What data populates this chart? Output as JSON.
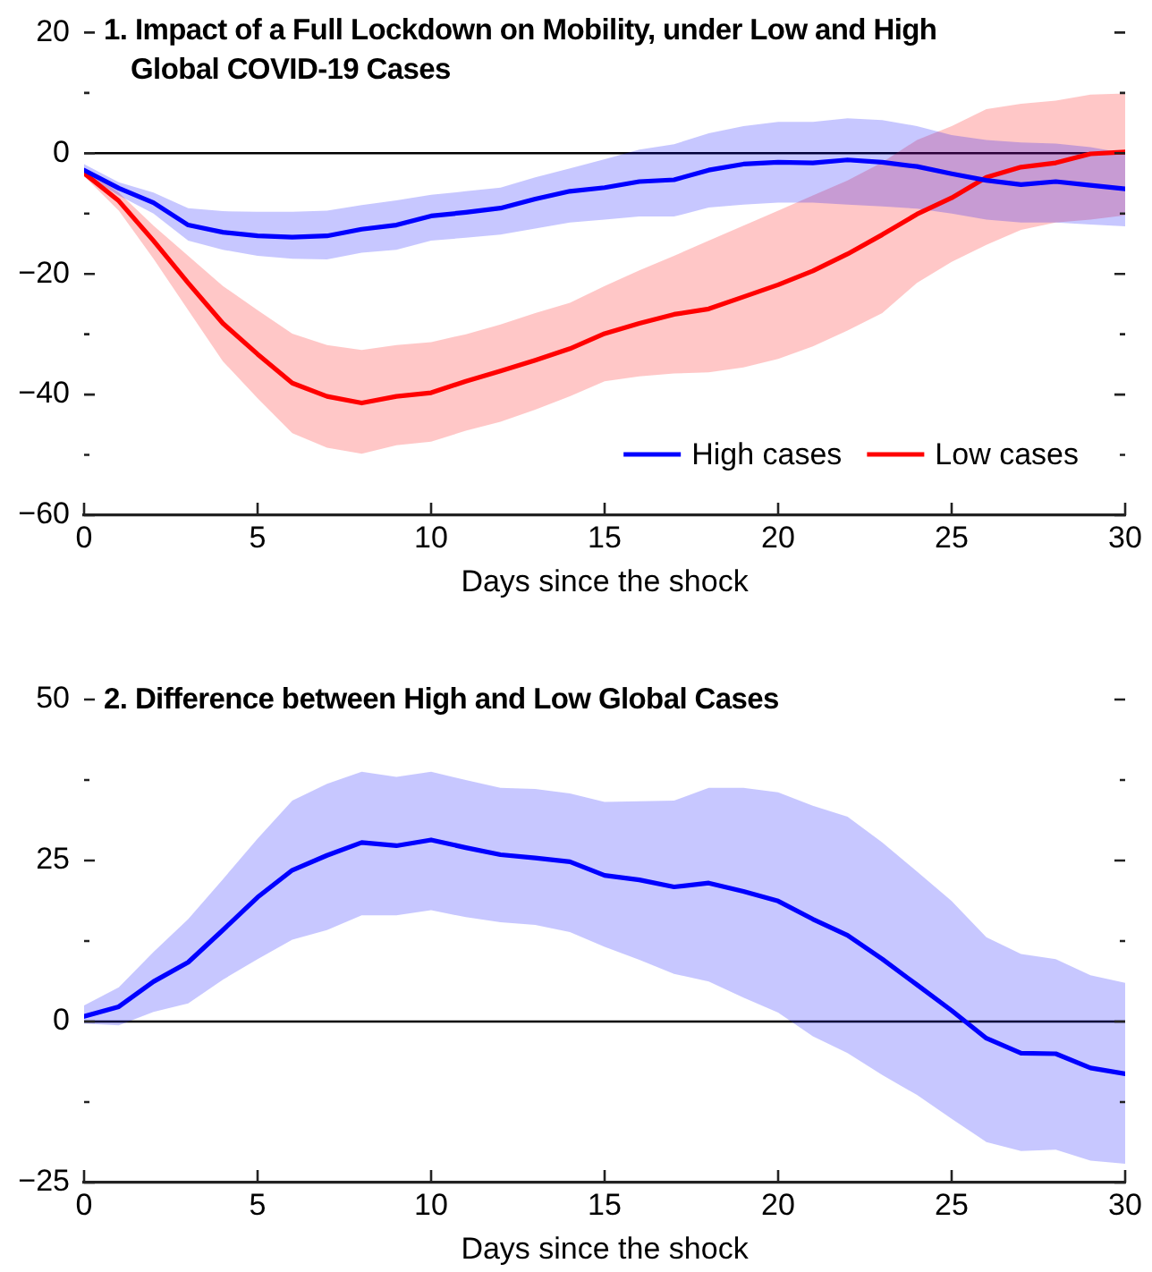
{
  "chart_data": [
    {
      "type": "line",
      "title": "1. Impact of a Full Lockdown on Mobility, under Low and High Global COVID-19 Cases",
      "xlabel": "Days since the shock",
      "x": [
        0,
        1,
        2,
        3,
        4,
        5,
        6,
        7,
        8,
        9,
        10,
        11,
        12,
        13,
        14,
        15,
        16,
        17,
        18,
        19,
        20,
        21,
        22,
        23,
        24,
        25,
        26,
        27,
        28,
        29,
        30
      ],
      "series": [
        {
          "name": "High cases",
          "color": "#0000ff",
          "values": [
            -2.8,
            -5.8,
            -8.2,
            -11.9,
            -13.1,
            -13.7,
            -13.9,
            -13.7,
            -12.6,
            -11.9,
            -10.4,
            -9.8,
            -9.1,
            -7.6,
            -6.3,
            -5.7,
            -4.7,
            -4.4,
            -2.8,
            -1.8,
            -1.5,
            -1.6,
            -1.1,
            -1.5,
            -2.2,
            -3.4,
            -4.5,
            -5.2,
            -4.7,
            -5.3,
            -5.9
          ],
          "lower": [
            -3.5,
            -7.0,
            -10.0,
            -14.5,
            -16.0,
            -17.0,
            -17.5,
            -17.6,
            -16.5,
            -16.0,
            -14.5,
            -14.0,
            -13.5,
            -12.5,
            -11.5,
            -11.0,
            -10.5,
            -10.5,
            -9.0,
            -8.5,
            -8.2,
            -8.2,
            -8.5,
            -8.8,
            -9.2,
            -10.0,
            -11.0,
            -11.5,
            -11.5,
            -11.8,
            -12.1
          ],
          "upper": [
            -1.8,
            -4.8,
            -6.5,
            -9.1,
            -9.6,
            -9.7,
            -9.7,
            -9.5,
            -8.6,
            -7.8,
            -6.9,
            -6.3,
            -5.7,
            -4.0,
            -2.5,
            -1.0,
            0.6,
            1.5,
            3.3,
            4.5,
            5.2,
            5.2,
            5.8,
            5.5,
            4.5,
            3.0,
            2.2,
            1.8,
            1.6,
            1.0,
            0.0
          ]
        },
        {
          "name": "Low cases",
          "color": "#ff0000",
          "values": [
            -3.3,
            -7.9,
            -14.5,
            -21.5,
            -28.2,
            -33.3,
            -38.1,
            -40.3,
            -41.4,
            -40.3,
            -39.7,
            -37.8,
            -36.1,
            -34.3,
            -32.4,
            -29.9,
            -28.2,
            -26.7,
            -25.8,
            -23.8,
            -21.8,
            -19.5,
            -16.7,
            -13.5,
            -10.1,
            -7.4,
            -4.0,
            -2.3,
            -1.6,
            -0.1,
            0.2
          ],
          "lower": [
            -3.8,
            -9.5,
            -17.5,
            -26.0,
            -34.5,
            -40.6,
            -46.4,
            -48.8,
            -49.8,
            -48.4,
            -47.8,
            -46.0,
            -44.5,
            -42.5,
            -40.3,
            -37.8,
            -37.0,
            -36.5,
            -36.3,
            -35.5,
            -34.1,
            -32.0,
            -29.4,
            -26.5,
            -21.5,
            -18.0,
            -15.2,
            -12.7,
            -11.5,
            -11.0,
            -10.3
          ],
          "upper": [
            -2.5,
            -6.5,
            -12.0,
            -17.0,
            -22.0,
            -26.0,
            -29.9,
            -31.8,
            -32.6,
            -31.8,
            -31.3,
            -30.0,
            -28.4,
            -26.5,
            -24.8,
            -22.0,
            -19.4,
            -17.0,
            -14.5,
            -12.0,
            -9.5,
            -7.0,
            -4.5,
            -1.5,
            2.2,
            4.5,
            7.3,
            8.2,
            8.7,
            9.7,
            9.9
          ]
        }
      ],
      "xlim": [
        0,
        30
      ],
      "xticks": [
        0,
        5,
        10,
        15,
        20,
        25,
        30
      ],
      "ylim": [
        -60,
        20
      ],
      "yticks": [
        20,
        {
          "value": 10,
          "label": null
        },
        0,
        {
          "value": -10,
          "label": null
        },
        {
          "value": -20,
          "label": "−20"
        },
        {
          "value": -30,
          "label": null
        },
        {
          "value": -40,
          "label": "−40"
        },
        {
          "value": -50,
          "label": null
        },
        {
          "value": -60,
          "label": "−60"
        }
      ],
      "ref_lines": [
        {
          "axis": "y",
          "value": 0,
          "color": "#000000"
        }
      ],
      "legend": "bottom right"
    },
    {
      "type": "line",
      "title": "2. Difference between High and Low Global Cases",
      "xlabel": "Days since the shock",
      "x": [
        0,
        1,
        2,
        3,
        4,
        5,
        6,
        7,
        8,
        9,
        10,
        11,
        12,
        13,
        14,
        15,
        16,
        17,
        18,
        19,
        20,
        21,
        22,
        23,
        24,
        25,
        26,
        27,
        28,
        29,
        30
      ],
      "series": [
        {
          "color": "#0000ff",
          "values": [
            0.8,
            2.3,
            6.2,
            9.2,
            14.2,
            19.3,
            23.5,
            25.8,
            27.8,
            27.3,
            28.2,
            27.0,
            25.9,
            25.4,
            24.8,
            22.7,
            22.0,
            20.9,
            21.5,
            20.2,
            18.7,
            15.9,
            13.4,
            9.7,
            5.7,
            1.7,
            -2.6,
            -4.9,
            -5.0,
            -7.2,
            -8.1
          ],
          "lower": [
            -0.3,
            -0.6,
            1.5,
            2.8,
            6.5,
            9.7,
            12.7,
            14.2,
            16.5,
            16.5,
            17.3,
            16.2,
            15.4,
            15.0,
            13.9,
            11.6,
            9.6,
            7.4,
            6.2,
            3.7,
            1.4,
            -2.3,
            -4.9,
            -8.3,
            -11.4,
            -15.1,
            -18.7,
            -20.1,
            -19.9,
            -21.6,
            -22.1
          ],
          "upper": [
            2.5,
            5.3,
            10.8,
            15.9,
            22.1,
            28.4,
            34.3,
            36.9,
            38.8,
            38.0,
            38.8,
            37.5,
            36.3,
            36.1,
            35.4,
            34.1,
            34.2,
            34.3,
            36.3,
            36.3,
            35.6,
            33.5,
            31.8,
            27.8,
            23.3,
            18.7,
            13.1,
            10.5,
            9.7,
            7.2,
            6.0
          ]
        }
      ],
      "xlim": [
        0,
        30
      ],
      "xticks": [
        0,
        5,
        10,
        15,
        20,
        25,
        30
      ],
      "ylim": [
        -25,
        50
      ],
      "yticks": [
        50,
        {
          "value": 37.5,
          "label": null
        },
        25,
        {
          "value": 12.5,
          "label": null
        },
        0,
        {
          "value": -12.5,
          "label": null
        },
        {
          "value": -25,
          "label": "−25"
        }
      ],
      "ref_lines": [
        {
          "axis": "y",
          "value": 0,
          "color": "#000000"
        }
      ]
    }
  ]
}
